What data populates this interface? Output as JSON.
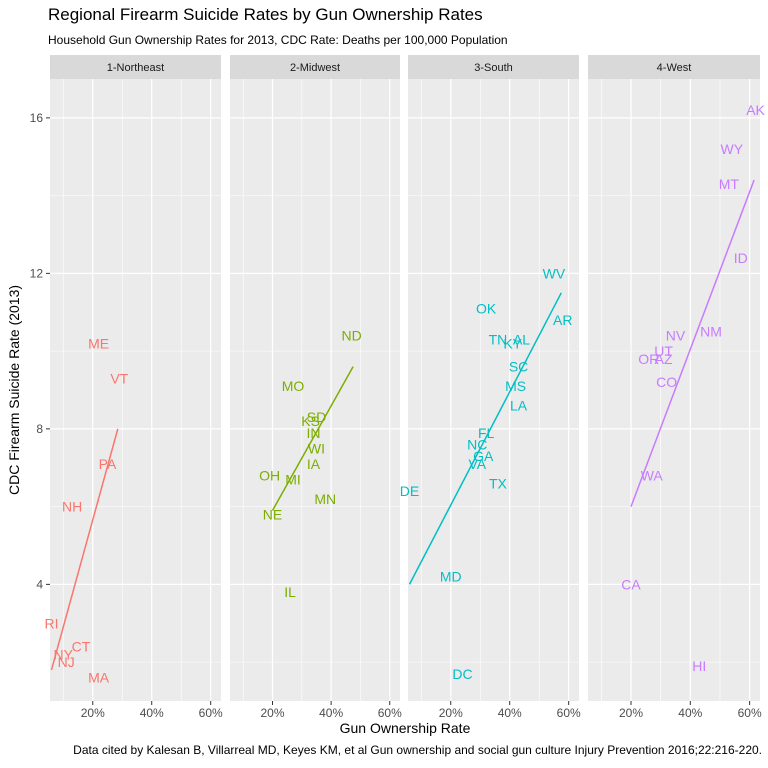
{
  "chart_data": {
    "type": "scatter",
    "title": "Regional Firearm Suicide Rates by Gun Ownership Rates",
    "subtitle": "Household Gun Ownership Rates for 2013, CDC Rate: Deaths per 100,000 Population",
    "caption": "Data cited by Kalesan B, Villarreal MD, Keyes KM, et al Gun ownership and social gun culture Injury Prevention 2016;22:216-220.",
    "xlabel": "Gun Ownership Rate",
    "ylabel": "CDC Firearm Suicide Rate (2013)",
    "xlim": [
      0.055,
      0.635
    ],
    "ylim": [
      1.0,
      17.0
    ],
    "x_ticks": [
      0.2,
      0.4,
      0.6
    ],
    "x_tick_labels": [
      "20%",
      "40%",
      "60%"
    ],
    "y_ticks": [
      4,
      8,
      12,
      16
    ],
    "y_tick_labels": [
      "4",
      "8",
      "12",
      "16"
    ],
    "grid": true,
    "facets": [
      {
        "name": "1-Northeast",
        "color": "#F8766D",
        "points": [
          {
            "label": "ME",
            "x": 0.22,
            "y": 10.2
          },
          {
            "label": "VT",
            "x": 0.29,
            "y": 9.3
          },
          {
            "label": "PA",
            "x": 0.25,
            "y": 7.1
          },
          {
            "label": "NH",
            "x": 0.13,
            "y": 6.0
          },
          {
            "label": "RI",
            "x": 0.06,
            "y": 3.0
          },
          {
            "label": "CT",
            "x": 0.16,
            "y": 2.4
          },
          {
            "label": "NY",
            "x": 0.1,
            "y": 2.2
          },
          {
            "label": "NJ",
            "x": 0.11,
            "y": 2.0
          },
          {
            "label": "MA",
            "x": 0.22,
            "y": 1.6
          }
        ],
        "fit": {
          "x": [
            0.06,
            0.285
          ],
          "y": [
            1.8,
            8.0
          ]
        }
      },
      {
        "name": "2-Midwest",
        "color": "#7CAE00",
        "points": [
          {
            "label": "ND",
            "x": 0.47,
            "y": 10.4
          },
          {
            "label": "MO",
            "x": 0.27,
            "y": 9.1
          },
          {
            "label": "SD",
            "x": 0.35,
            "y": 8.3
          },
          {
            "label": "KS",
            "x": 0.33,
            "y": 8.2
          },
          {
            "label": "IN",
            "x": 0.34,
            "y": 7.9
          },
          {
            "label": "WI",
            "x": 0.35,
            "y": 7.5
          },
          {
            "label": "IA",
            "x": 0.34,
            "y": 7.1
          },
          {
            "label": "OH",
            "x": 0.19,
            "y": 6.8
          },
          {
            "label": "MI",
            "x": 0.27,
            "y": 6.7
          },
          {
            "label": "MN",
            "x": 0.38,
            "y": 6.2
          },
          {
            "label": "NE",
            "x": 0.2,
            "y": 5.8
          },
          {
            "label": "IL",
            "x": 0.26,
            "y": 3.8
          }
        ],
        "fit": {
          "x": [
            0.2,
            0.475
          ],
          "y": [
            5.9,
            9.6
          ]
        }
      },
      {
        "name": "3-South",
        "color": "#00BFC4",
        "points": [
          {
            "label": "WV",
            "x": 0.55,
            "y": 12.0
          },
          {
            "label": "OK",
            "x": 0.32,
            "y": 11.1
          },
          {
            "label": "AR",
            "x": 0.58,
            "y": 10.8
          },
          {
            "label": "TN",
            "x": 0.36,
            "y": 10.3
          },
          {
            "label": "AL",
            "x": 0.44,
            "y": 10.3
          },
          {
            "label": "KY",
            "x": 0.41,
            "y": 10.2
          },
          {
            "label": "SC",
            "x": 0.43,
            "y": 9.6
          },
          {
            "label": "MS",
            "x": 0.42,
            "y": 9.1
          },
          {
            "label": "LA",
            "x": 0.43,
            "y": 8.6
          },
          {
            "label": "FL",
            "x": 0.32,
            "y": 7.9
          },
          {
            "label": "NC",
            "x": 0.29,
            "y": 7.6
          },
          {
            "label": "GA",
            "x": 0.31,
            "y": 7.3
          },
          {
            "label": "VA",
            "x": 0.29,
            "y": 7.1
          },
          {
            "label": "TX",
            "x": 0.36,
            "y": 6.6
          },
          {
            "label": "DE",
            "x": 0.06,
            "y": 6.4
          },
          {
            "label": "MD",
            "x": 0.2,
            "y": 4.2
          },
          {
            "label": "DC",
            "x": 0.24,
            "y": 1.7
          }
        ],
        "fit": {
          "x": [
            0.06,
            0.575
          ],
          "y": [
            4.0,
            11.5
          ]
        }
      },
      {
        "name": "4-West",
        "color": "#C77CFF",
        "points": [
          {
            "label": "AK",
            "x": 0.62,
            "y": 16.2
          },
          {
            "label": "WY",
            "x": 0.54,
            "y": 15.2
          },
          {
            "label": "MT",
            "x": 0.53,
            "y": 14.3
          },
          {
            "label": "ID",
            "x": 0.57,
            "y": 12.4
          },
          {
            "label": "NM",
            "x": 0.47,
            "y": 10.5
          },
          {
            "label": "NV",
            "x": 0.35,
            "y": 10.4
          },
          {
            "label": "UT",
            "x": 0.31,
            "y": 10.0
          },
          {
            "label": "AZ",
            "x": 0.31,
            "y": 9.8
          },
          {
            "label": "OR",
            "x": 0.26,
            "y": 9.8
          },
          {
            "label": "CO",
            "x": 0.32,
            "y": 9.2
          },
          {
            "label": "WA",
            "x": 0.27,
            "y": 6.8
          },
          {
            "label": "CA",
            "x": 0.2,
            "y": 4.0
          },
          {
            "label": "HI",
            "x": 0.43,
            "y": 1.9
          }
        ],
        "fit": {
          "x": [
            0.2,
            0.615
          ],
          "y": [
            6.0,
            14.4
          ]
        }
      }
    ]
  }
}
